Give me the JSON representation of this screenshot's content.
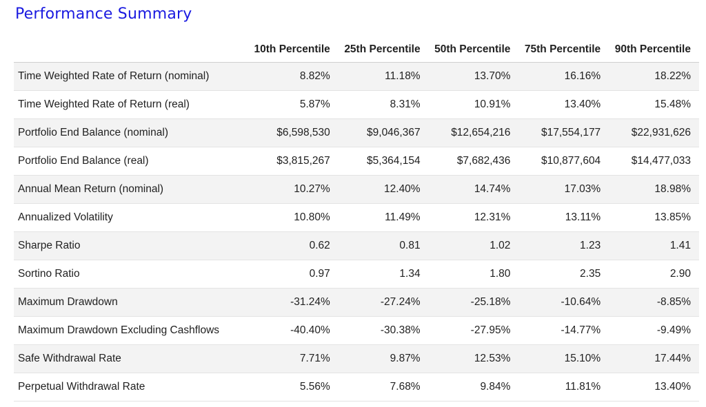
{
  "title": "Performance Summary",
  "columns": [
    "",
    "10th Percentile",
    "25th Percentile",
    "50th Percentile",
    "75th Percentile",
    "90th Percentile"
  ],
  "rows": [
    {
      "label": "Time Weighted Rate of Return (nominal)",
      "values": [
        "8.82%",
        "11.18%",
        "13.70%",
        "16.16%",
        "18.22%"
      ]
    },
    {
      "label": "Time Weighted Rate of Return (real)",
      "values": [
        "5.87%",
        "8.31%",
        "10.91%",
        "13.40%",
        "15.48%"
      ]
    },
    {
      "label": "Portfolio End Balance (nominal)",
      "values": [
        "$6,598,530",
        "$9,046,367",
        "$12,654,216",
        "$17,554,177",
        "$22,931,626"
      ]
    },
    {
      "label": "Portfolio End Balance (real)",
      "values": [
        "$3,815,267",
        "$5,364,154",
        "$7,682,436",
        "$10,877,604",
        "$14,477,033"
      ]
    },
    {
      "label": "Annual Mean Return (nominal)",
      "values": [
        "10.27%",
        "12.40%",
        "14.74%",
        "17.03%",
        "18.98%"
      ]
    },
    {
      "label": "Annualized Volatility",
      "values": [
        "10.80%",
        "11.49%",
        "12.31%",
        "13.11%",
        "13.85%"
      ]
    },
    {
      "label": "Sharpe Ratio",
      "values": [
        "0.62",
        "0.81",
        "1.02",
        "1.23",
        "1.41"
      ]
    },
    {
      "label": "Sortino Ratio",
      "values": [
        "0.97",
        "1.34",
        "1.80",
        "2.35",
        "2.90"
      ]
    },
    {
      "label": "Maximum Drawdown",
      "values": [
        "-31.24%",
        "-27.24%",
        "-25.18%",
        "-10.64%",
        "-8.85%"
      ]
    },
    {
      "label": "Maximum Drawdown Excluding Cashflows",
      "values": [
        "-40.40%",
        "-30.38%",
        "-27.95%",
        "-14.77%",
        "-9.49%"
      ]
    },
    {
      "label": "Safe Withdrawal Rate",
      "values": [
        "7.71%",
        "9.87%",
        "12.53%",
        "15.10%",
        "17.44%"
      ]
    },
    {
      "label": "Perpetual Withdrawal Rate",
      "values": [
        "5.56%",
        "7.68%",
        "9.84%",
        "11.81%",
        "13.40%"
      ]
    }
  ],
  "colors": {
    "title": "#1a1ae0",
    "stripe": "#f3f3f3",
    "text": "#212121"
  }
}
